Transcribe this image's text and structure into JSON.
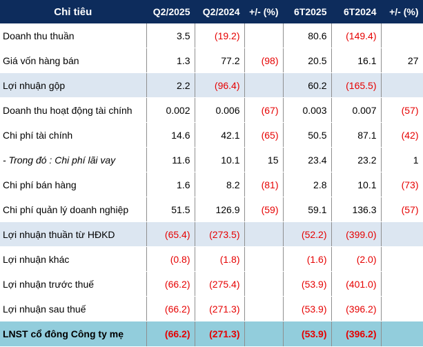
{
  "headers": [
    "Chỉ tiêu",
    "Q2/2025",
    "Q2/2024",
    "+/- (%)",
    "6T2025",
    "6T2024",
    "+/- (%)"
  ],
  "rows": [
    {
      "label": "Doanh thu thuần",
      "q2_2025": "3.5",
      "q2_2024": "(19.2)",
      "q_change": "",
      "h1_2025": "80.6",
      "h1_2024": "(149.4)",
      "h_change": ""
    },
    {
      "label": "Giá vốn hàng bán",
      "q2_2025": "1.3",
      "q2_2024": "77.2",
      "q_change": "(98)",
      "h1_2025": "20.5",
      "h1_2024": "16.1",
      "h_change": "27"
    },
    {
      "label": "Lợi nhuận gộp",
      "q2_2025": "2.2",
      "q2_2024": "(96.4)",
      "q_change": "",
      "h1_2025": "60.2",
      "h1_2024": "(165.5)",
      "h_change": ""
    },
    {
      "label": "Doanh thu hoạt động tài chính",
      "q2_2025": "0.002",
      "q2_2024": "0.006",
      "q_change": "(67)",
      "h1_2025": "0.003",
      "h1_2024": "0.007",
      "h_change": "(57)"
    },
    {
      "label": "Chi phí tài chính",
      "q2_2025": "14.6",
      "q2_2024": "42.1",
      "q_change": "(65)",
      "h1_2025": "50.5",
      "h1_2024": "87.1",
      "h_change": "(42)"
    },
    {
      "label": "- Trong đó : Chi phí lãi vay",
      "q2_2025": "11.6",
      "q2_2024": "10.1",
      "q_change": "15",
      "h1_2025": "23.4",
      "h1_2024": "23.2",
      "h_change": "1"
    },
    {
      "label": "Chi phí bán hàng",
      "q2_2025": "1.6",
      "q2_2024": "8.2",
      "q_change": "(81)",
      "h1_2025": "2.8",
      "h1_2024": "10.1",
      "h_change": "(73)"
    },
    {
      "label": "Chi phí quản lý doanh nghiệp",
      "q2_2025": "51.5",
      "q2_2024": "126.9",
      "q_change": "(59)",
      "h1_2025": "59.1",
      "h1_2024": "136.3",
      "h_change": "(57)"
    },
    {
      "label": "Lợi nhuận thuần từ HĐKD",
      "q2_2025": "(65.4)",
      "q2_2024": "(273.5)",
      "q_change": "",
      "h1_2025": "(52.2)",
      "h1_2024": "(399.0)",
      "h_change": ""
    },
    {
      "label": "Lợi nhuận khác",
      "q2_2025": "(0.8)",
      "q2_2024": "(1.8)",
      "q_change": "",
      "h1_2025": "(1.6)",
      "h1_2024": "(2.0)",
      "h_change": ""
    },
    {
      "label": "Lợi nhuận trước thuế",
      "q2_2025": "(66.2)",
      "q2_2024": "(275.4)",
      "q_change": "",
      "h1_2025": "(53.9)",
      "h1_2024": "(401.0)",
      "h_change": ""
    },
    {
      "label": "Lợi nhuận sau thuế",
      "q2_2025": "(66.2)",
      "q2_2024": "(271.3)",
      "q_change": "",
      "h1_2025": "(53.9)",
      "h1_2024": "(396.2)",
      "h_change": ""
    },
    {
      "label": "LNST cổ đông Công ty mẹ",
      "q2_2025": "(66.2)",
      "q2_2024": "(271.3)",
      "q_change": "",
      "h1_2025": "(53.9)",
      "h1_2024": "(396.2)",
      "h_change": ""
    }
  ],
  "colors": {
    "header_bg": "#0d2c5c",
    "highlight_row_bg": "#dce6f1",
    "total_row_bg": "#92cddc",
    "negative_text": "#e60000"
  }
}
